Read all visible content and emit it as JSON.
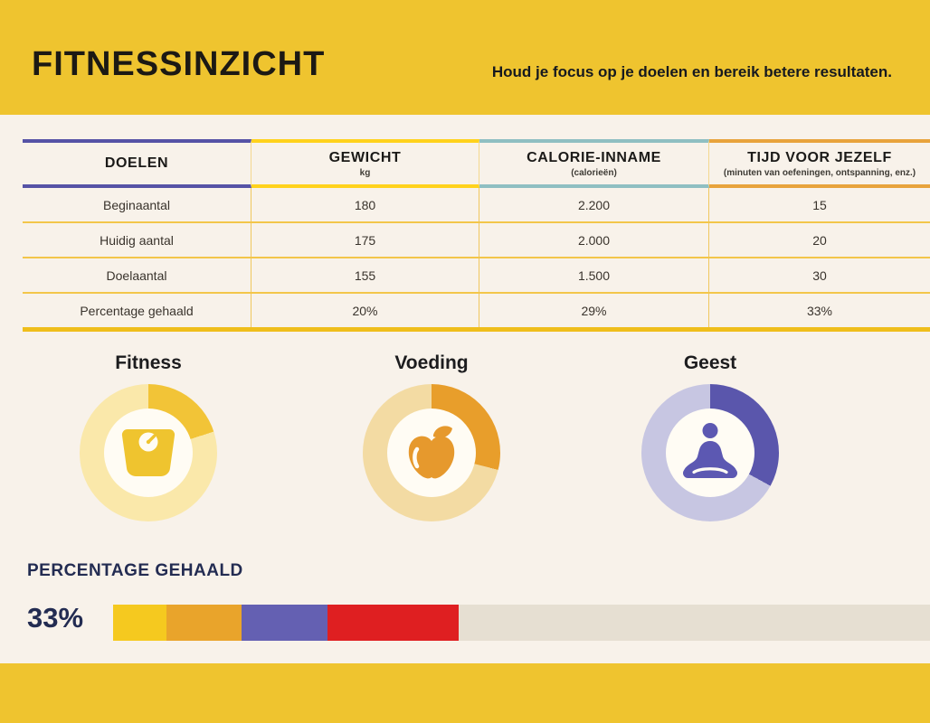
{
  "header": {
    "title": "FITNESSINZICHT",
    "subtitle": "Houd je focus op je doelen en bereik betere resultaten."
  },
  "colors": {
    "band_yellow": "#EFC42F",
    "page_background": "#F8F2EA",
    "navy_text": "#232C52"
  },
  "table": {
    "columns": [
      {
        "label": "DOELEN",
        "sublabel": "",
        "accent": "#5653A6"
      },
      {
        "label": "GEWICHT",
        "sublabel": "kg",
        "accent": "#FFD21C"
      },
      {
        "label": "CALORIE-INNAME",
        "sublabel": "(calorieën)",
        "accent": "#8FBFC2"
      },
      {
        "label": "TIJD VOOR JEZELF",
        "sublabel": "(minuten van oefeningen, ontspanning, enz.)",
        "accent": "#E8A33C"
      }
    ],
    "rows": [
      {
        "label": "Beginaantal",
        "values": [
          "180",
          "2.200",
          "15"
        ]
      },
      {
        "label": "Huidig aantal",
        "values": [
          "175",
          "2.000",
          "20"
        ]
      },
      {
        "label": "Doelaantal",
        "values": [
          "155",
          "1.500",
          "30"
        ]
      },
      {
        "label": "Percentage gehaald",
        "values": [
          "20%",
          "29%",
          "33%"
        ]
      }
    ]
  },
  "donuts": [
    {
      "label": "Fitness",
      "percent": 20,
      "color": "#F2C437",
      "track": "#FAE8AA",
      "icon": "scale-icon",
      "icon_color": "#EFC42F"
    },
    {
      "label": "Voeding",
      "percent": 29,
      "color": "#E89E2B",
      "track": "#F3DBA3",
      "icon": "apple-icon",
      "icon_color": "#E6992D"
    },
    {
      "label": "Geest",
      "percent": 33,
      "color": "#5A56AC",
      "track": "#C7C6E2",
      "icon": "meditation-icon",
      "icon_color": "#5C58B2"
    }
  ],
  "progress": {
    "label": "PERCENTAGE GEHAALD",
    "value": "33%",
    "track_color": "#E6DFD2",
    "segments": [
      {
        "color": "#F5C91F",
        "width_pct": 6.5
      },
      {
        "color": "#E9A42B",
        "width_pct": 9.2
      },
      {
        "color": "#6460B2",
        "width_pct": 10.6
      },
      {
        "color": "#DF1F21",
        "width_pct": 16.0
      }
    ]
  },
  "chart_data": [
    {
      "type": "table",
      "title": "Doelen",
      "columns": [
        "DOELEN",
        "GEWICHT (kg)",
        "CALORIE-INNAME (calorieën)",
        "TIJD VOOR JEZELF (minuten van oefeningen, ontspanning, enz.)"
      ],
      "rows": [
        [
          "Beginaantal",
          "180",
          "2.200",
          "15"
        ],
        [
          "Huidig aantal",
          "175",
          "2.000",
          "20"
        ],
        [
          "Doelaantal",
          "155",
          "1.500",
          "30"
        ],
        [
          "Percentage gehaald",
          "20%",
          "29%",
          "33%"
        ]
      ]
    },
    {
      "type": "pie",
      "title": "Fitness",
      "categories": [
        "gehaald",
        "resterend"
      ],
      "values": [
        20,
        80
      ],
      "legend_position": "none"
    },
    {
      "type": "pie",
      "title": "Voeding",
      "categories": [
        "gehaald",
        "resterend"
      ],
      "values": [
        29,
        71
      ],
      "legend_position": "none"
    },
    {
      "type": "pie",
      "title": "Geest",
      "categories": [
        "gehaald",
        "resterend"
      ],
      "values": [
        33,
        67
      ],
      "legend_position": "none"
    },
    {
      "type": "bar",
      "title": "PERCENTAGE GEHAALD",
      "categories": [
        "geel",
        "oranje",
        "paars",
        "rood",
        "rest"
      ],
      "values": [
        6.5,
        9.2,
        10.6,
        16.0,
        57.7
      ],
      "data_label": "33%",
      "xlabel": "",
      "ylabel": "",
      "xlim": [
        0,
        100
      ],
      "grid": false
    }
  ]
}
